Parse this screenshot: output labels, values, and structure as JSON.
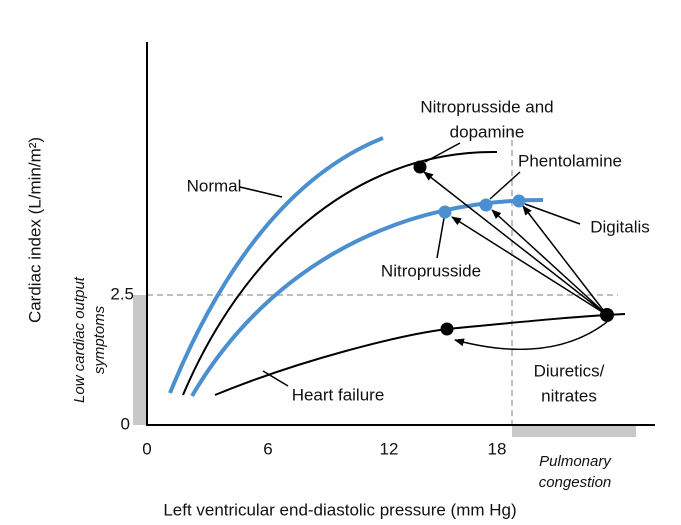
{
  "y_axis": {
    "label": "Cardiac index (L/min/m²)",
    "ticks": [
      "0",
      "2.5"
    ],
    "region_label": [
      "Low cardiac output",
      "symptoms"
    ]
  },
  "x_axis": {
    "label": "Left ventricular end-diastolic pressure (mm Hg)",
    "ticks": [
      "0",
      "6",
      "12",
      "18"
    ],
    "region_label": [
      "Pulmonary",
      "congestion"
    ]
  },
  "annotations": {
    "normal": "Normal",
    "heart_failure": "Heart failure",
    "nitroprusside_dopamine": [
      "Nitroprusside and",
      "dopamine"
    ],
    "phentolamine": "Phentolamine",
    "digitalis": "Digitalis",
    "nitroprusside": "Nitroprusside",
    "diuretics": [
      "Diuretics/",
      "nitrates"
    ]
  }
}
